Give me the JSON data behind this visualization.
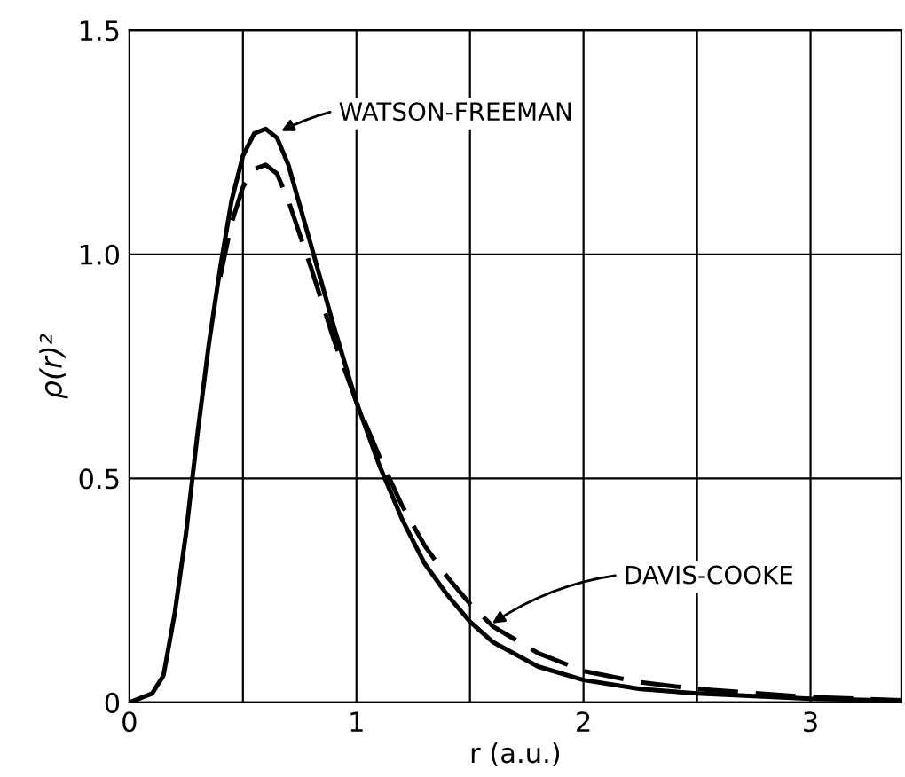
{
  "chart_data": {
    "type": "line",
    "xlabel": "r (a.u.)",
    "ylabel": "ρ(r)²",
    "xlim": [
      0,
      3.4
    ],
    "ylim": [
      0,
      1.5
    ],
    "xticks": [
      0,
      {
        "value": 0.5,
        "label": null
      },
      1,
      {
        "value": 1.5,
        "label": null
      },
      2,
      {
        "value": 2.5,
        "label": null
      },
      3
    ],
    "yticks": [
      0,
      0.5,
      {
        "value": 1,
        "label": "1.0"
      },
      1.5
    ],
    "grid": true,
    "legend": false,
    "marker": "none",
    "series": [
      {
        "color": "#000000",
        "line_style": "solid",
        "x": [
          0,
          0.1,
          0.15,
          0.2,
          0.25,
          0.3,
          0.35,
          0.4,
          0.45,
          0.5,
          0.55,
          0.6,
          0.65,
          0.7,
          0.8,
          0.9,
          1.0,
          1.1,
          1.2,
          1.3,
          1.4,
          1.5,
          1.6,
          1.8,
          2.0,
          2.25,
          2.5,
          3.0,
          3.4
        ],
        "values": [
          0,
          0.02,
          0.06,
          0.2,
          0.38,
          0.6,
          0.8,
          0.97,
          1.12,
          1.22,
          1.27,
          1.28,
          1.26,
          1.2,
          1.02,
          0.84,
          0.67,
          0.53,
          0.41,
          0.31,
          0.24,
          0.18,
          0.135,
          0.08,
          0.05,
          0.03,
          0.02,
          0.008,
          0.004
        ]
      },
      {
        "color": "#000000",
        "line_style": "dashed",
        "x": [
          0.4,
          0.45,
          0.5,
          0.55,
          0.6,
          0.65,
          0.7,
          0.8,
          0.9,
          1.0,
          1.1,
          1.2,
          1.3,
          1.4,
          1.5,
          1.6,
          1.8,
          2.0,
          2.25,
          2.5,
          3.0,
          3.4
        ],
        "values": [
          0.95,
          1.07,
          1.15,
          1.19,
          1.2,
          1.18,
          1.12,
          0.97,
          0.81,
          0.67,
          0.55,
          0.44,
          0.35,
          0.28,
          0.22,
          0.17,
          0.11,
          0.07,
          0.045,
          0.03,
          0.012,
          0.005
        ]
      }
    ],
    "annotations": [
      {
        "text": "WATSON-FREEMAN",
        "x": 0.65,
        "y": 1.27
      },
      {
        "text": "DAVIS-COOKE",
        "x": 1.58,
        "y": 0.17
      }
    ]
  }
}
